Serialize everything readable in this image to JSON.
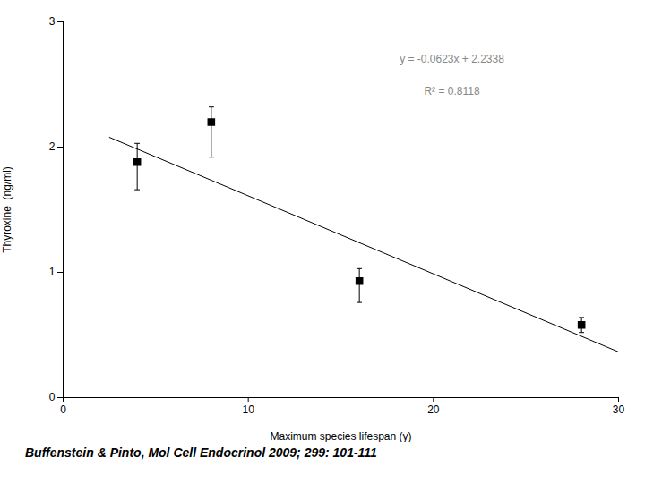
{
  "chart_data": {
    "type": "scatter",
    "xlabel": "Maximum species lifespan (y)",
    "ylabel": "Thyroxine  (ng/ml)",
    "xlim": [
      0,
      30
    ],
    "ylim": [
      0,
      3
    ],
    "xticks": [
      0,
      10,
      20,
      30
    ],
    "yticks": [
      0,
      1,
      2,
      3
    ],
    "annotations": [
      "y = -0.0623x + 2.2338",
      "R² = 0.8118"
    ],
    "caption": "Buffenstein & Pinto, Mol Cell Endocrinol 2009; 299: 101-111",
    "series": [
      {
        "type": "scatter",
        "marker": "square",
        "color": "#000000",
        "x": [
          4,
          8,
          16,
          28
        ],
        "values": [
          1.88,
          2.2,
          0.93,
          0.58
        ],
        "yerr_lo": [
          0.22,
          0.28,
          0.17,
          0.06
        ],
        "yerr_hi": [
          0.15,
          0.12,
          0.1,
          0.06
        ]
      },
      {
        "type": "line",
        "color": "#000000",
        "x": [
          2.5,
          30
        ],
        "values": [
          2.07805,
          0.3648
        ]
      }
    ]
  }
}
